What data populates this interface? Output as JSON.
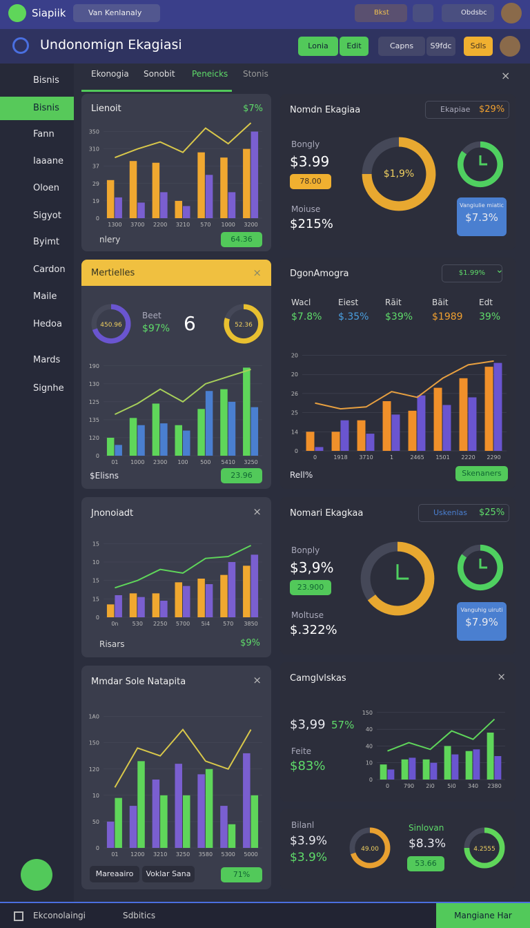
{
  "topbar": {
    "brand": "Siapiik",
    "search": "Van Kenlanaly",
    "chip": "Bkst",
    "user": "Obdsbc"
  },
  "header": {
    "title": "Undonomign Ekagiasi",
    "buttons": [
      "Lonia",
      "Edit",
      "Capns",
      "S9fdc",
      "Sdls"
    ]
  },
  "sidebar": [
    "Bisnis",
    "Bisnis",
    "Fann",
    "Iaaane",
    "Oloen",
    "Sigyot",
    "Byimt",
    "Cardon",
    "Maile",
    "Hedoa",
    "Mards",
    "Signhe"
  ],
  "tabs": [
    "Ekonogia",
    "Sonobit",
    "Peneicks",
    "Stonis"
  ],
  "cards": {
    "c1": {
      "title": "Lienoit",
      "badge": "$7%",
      "foot": "nlery",
      "pill": "64.36",
      "chart": {
        "type": "bar",
        "categories": [
          "1300",
          "3700",
          "2200",
          "3210",
          "570",
          "1000",
          "3200"
        ],
        "ylim": [
          0,
          5.5
        ],
        "yticks": [
          {
            "value": 0,
            "label": "0"
          },
          {
            "value": 1,
            "label": "19"
          },
          {
            "value": 2,
            "label": "29"
          },
          {
            "value": 3,
            "label": "37"
          },
          {
            "value": 4,
            "label": "310"
          },
          {
            "value": 5,
            "label": "350"
          }
        ],
        "series": [
          {
            "color": "#f0a830",
            "values": [
              2.2,
              3.3,
              3.2,
              1.0,
              3.8,
              3.5,
              4.0
            ]
          },
          {
            "color": "#7a5fd0",
            "values": [
              1.2,
              0.9,
              1.5,
              0.7,
              2.5,
              1.5,
              5.0
            ]
          },
          {
            "type": "line",
            "color": "#d9c84a",
            "values": [
              3.5,
              4.0,
              4.4,
              3.8,
              5.2,
              4.3,
              5.5
            ]
          }
        ]
      }
    },
    "c2": {
      "title": "Mertielles",
      "donut1": {
        "label": "450.96",
        "arc": 70,
        "color": "#6a55d0"
      },
      "beet": "Beet",
      "pct": "$97%",
      "six": "6",
      "donut2": {
        "label": "52.36",
        "arc": 80,
        "color": "#e8c030"
      },
      "foot": "$Elisns",
      "pill": "23.96",
      "chart": {
        "type": "bar",
        "categories": [
          "01",
          "1000",
          "2300",
          "100",
          "500",
          "5410",
          "3250"
        ],
        "ylim": [
          0,
          5.3
        ],
        "yticks": [
          {
            "value": 0,
            "label": "0"
          },
          {
            "value": 1,
            "label": "120"
          },
          {
            "value": 2,
            "label": "135"
          },
          {
            "value": 3,
            "label": "125"
          },
          {
            "value": 4,
            "label": "130"
          },
          {
            "value": 5,
            "label": "190"
          }
        ],
        "series": [
          {
            "color": "#5fd65a",
            "values": [
              1.0,
              2.1,
              2.9,
              1.7,
              2.6,
              3.7,
              4.9
            ]
          },
          {
            "color": "#4a7fd0",
            "values": [
              0.6,
              1.7,
              1.8,
              1.4,
              3.6,
              3.0,
              2.7
            ]
          },
          {
            "type": "line",
            "color": "#a8d05a",
            "values": [
              2.3,
              2.9,
              3.7,
              3.0,
              4.0,
              4.4,
              4.8
            ]
          }
        ]
      }
    },
    "c3": {
      "title": "Jnonoiadt",
      "foot": "Risars",
      "pct": "$9%",
      "chart": {
        "type": "bar",
        "categories": [
          "0n",
          "530",
          "2250",
          "5700",
          "5i4",
          "570",
          "3850"
        ],
        "ylim": [
          0,
          4.2
        ],
        "yticks": [
          {
            "value": 0,
            "label": "0"
          },
          {
            "value": 1,
            "label": "15"
          },
          {
            "value": 2,
            "label": "15"
          },
          {
            "value": 3,
            "label": "10"
          },
          {
            "value": 4,
            "label": "15"
          }
        ],
        "series": [
          {
            "color": "#f0a830",
            "values": [
              0.7,
              1.3,
              1.3,
              1.9,
              2.1,
              2.3,
              2.8
            ]
          },
          {
            "color": "#7a5fd0",
            "values": [
              1.2,
              1.1,
              0.9,
              1.7,
              1.8,
              3.0,
              3.4
            ]
          },
          {
            "type": "line",
            "color": "#5fd65a",
            "values": [
              1.6,
              2.0,
              2.6,
              2.4,
              3.2,
              3.3,
              3.9
            ]
          }
        ]
      }
    },
    "c4": {
      "title": "Mmdar Sole Natapita",
      "buttons": [
        "Mareaairo",
        "Voklar Sana"
      ],
      "pill": "71%",
      "chart": {
        "type": "bar",
        "categories": [
          "01",
          "1200",
          "3210",
          "3250",
          "3580",
          "5300",
          "5000"
        ],
        "ylim": [
          0,
          5.2
        ],
        "yticks": [
          {
            "value": 0,
            "label": "0"
          },
          {
            "value": 1,
            "label": "50"
          },
          {
            "value": 2,
            "label": "10"
          },
          {
            "value": 3,
            "label": "120"
          },
          {
            "value": 4,
            "label": "150"
          },
          {
            "value": 5,
            "label": "1A0"
          }
        ],
        "series": [
          {
            "color": "#7a5fd0",
            "values": [
              1.0,
              1.6,
              2.6,
              3.2,
              2.8,
              1.6,
              3.6
            ]
          },
          {
            "color": "#5fd65a",
            "values": [
              1.9,
              3.3,
              2.0,
              2.0,
              3.0,
              0.9,
              2.0
            ]
          },
          {
            "type": "line",
            "color": "#d9c84a",
            "values": [
              2.3,
              3.8,
              3.5,
              4.5,
              3.3,
              3.0,
              4.5
            ]
          }
        ]
      }
    },
    "r1": {
      "title": "Nomdn Ekagiaa",
      "tag": "Ekapiae",
      "badge": "$29%",
      "l1": "Bongly",
      "v1": "$3.99",
      "pill": "78.00",
      "l2": "Moiuse",
      "v2": "$215%",
      "gauge": {
        "label": "$1,9%",
        "arc": 75,
        "color": "#e8a830"
      },
      "ring": {
        "arc": 85,
        "color": "#4fd060"
      },
      "boxtitle": "Vangiulie miatic",
      "boxval": "$7.3%"
    },
    "r2": {
      "title": "DgonAmogra",
      "badge": "$1.99%",
      "stats": [
        {
          "label": "Wacl",
          "value": "$7.8%"
        },
        {
          "label": "Eiest",
          "value": "$.35%"
        },
        {
          "label": "Rāit",
          "value": "$39%"
        },
        {
          "label": "Bāit",
          "value": "$1989"
        },
        {
          "label": "Edt",
          "value": "39%"
        }
      ],
      "foot": "Rell%",
      "button": "Skenaners",
      "chart": {
        "type": "bar",
        "categories": [
          "0",
          "1918",
          "3710",
          "1",
          "2465",
          "1501",
          "2220",
          "2290"
        ],
        "ylim": [
          0,
          5.2
        ],
        "yticks": [
          {
            "value": 0,
            "label": "0"
          },
          {
            "value": 1,
            "label": "14"
          },
          {
            "value": 2,
            "label": "25"
          },
          {
            "value": 3,
            "label": "26"
          },
          {
            "value": 4,
            "label": "20"
          },
          {
            "value": 5,
            "label": "20"
          }
        ],
        "series": [
          {
            "color": "#f0902a",
            "values": [
              1.0,
              1.0,
              1.6,
              2.6,
              2.1,
              3.3,
              3.8,
              4.4
            ]
          },
          {
            "color": "#6a55d0",
            "values": [
              0.2,
              1.6,
              0.9,
              1.9,
              2.9,
              2.4,
              2.8,
              4.6
            ]
          },
          {
            "type": "line",
            "color": "#e8a040",
            "values": [
              2.5,
              2.2,
              2.3,
              3.1,
              2.8,
              3.8,
              4.5,
              4.7
            ]
          }
        ]
      }
    },
    "r3": {
      "title": "Nomari Ekagkaa",
      "tag": "Uskenlas",
      "badge": "$25%",
      "l1": "Bonply",
      "v1": "$3,9%",
      "pill": "23.900",
      "l2": "Moltuse",
      "v2": "$.322%",
      "gauge": {
        "arc": 65,
        "color": "#e8a830"
      },
      "ring": {
        "arc": 85,
        "color": "#4fd060"
      },
      "boxtitle": "Vanguhig uiruti",
      "boxval": "$7.9%"
    },
    "r4": {
      "title": "Camglvlskas",
      "v1": "$3,99",
      "v1b": "57%",
      "l2": "Feite",
      "v2": "$83%",
      "chart": {
        "type": "bar",
        "categories": [
          "0",
          "790",
          "2i0",
          "5i0",
          "340",
          "2380"
        ],
        "ylim": [
          0,
          4.2
        ],
        "yticks": [
          {
            "value": 0,
            "label": "0"
          },
          {
            "value": 1,
            "label": "10"
          },
          {
            "value": 2,
            "label": "40"
          },
          {
            "value": 3,
            "label": "40"
          },
          {
            "value": 4,
            "label": "150"
          }
        ],
        "series": [
          {
            "color": "#5fd65a",
            "values": [
              0.9,
              1.2,
              1.2,
              2.0,
              1.7,
              2.8
            ]
          },
          {
            "color": "#6a55d0",
            "values": [
              0.6,
              1.3,
              1.0,
              1.5,
              1.8,
              1.4
            ]
          },
          {
            "type": "line",
            "color": "#5fd65a",
            "values": [
              1.7,
              2.2,
              1.8,
              2.9,
              2.4,
              3.6
            ]
          }
        ]
      }
    },
    "r5": {
      "l1": "Bilanl",
      "v1": "$3.9%",
      "v2": "$3.9%",
      "donut1": {
        "label": "49.00",
        "arc": 70,
        "color": "#e8a030"
      },
      "l2": "Sinlovan",
      "v3": "$8.3%",
      "pill": "53.66",
      "donut2": {
        "label": "4.2555",
        "arc": 75,
        "color": "#5fd65a"
      }
    }
  },
  "bottombar": {
    "items": [
      "Ekconolaingi",
      "Sdbitics"
    ],
    "button": "Mangiane Har"
  }
}
